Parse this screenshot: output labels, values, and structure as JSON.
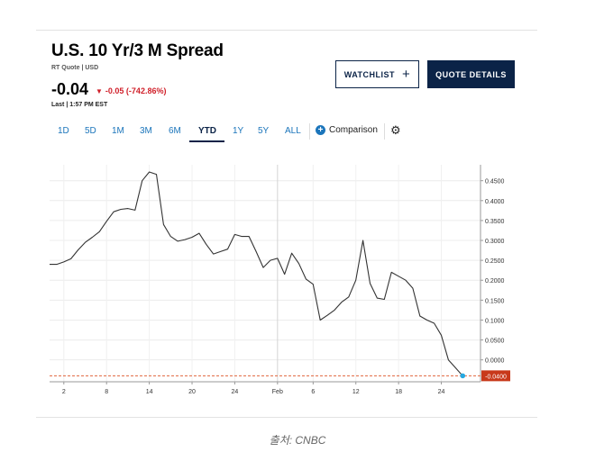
{
  "header": {
    "title": "U.S. 10 Yr/3 M Spread",
    "subtitle": "RT Quote | USD",
    "price": "-0.04",
    "change": "-0.05 (-742.86%)",
    "last": "Last | 1:57 PM EST",
    "watchlist_label": "WATCHLIST",
    "quote_details_label": "QUOTE DETAILS"
  },
  "tabs": [
    "1D",
    "5D",
    "1M",
    "3M",
    "6M",
    "YTD",
    "1Y",
    "5Y",
    "ALL"
  ],
  "active_tab": "YTD",
  "comparison_label": "Comparison",
  "caption": "출처: CNBC",
  "colors": {
    "navy": "#0b2347",
    "link": "#1b75bb",
    "negative": "#d0202a",
    "line": "#333333",
    "last_marker": "#27a9e1"
  },
  "chart_data": {
    "type": "line",
    "x_tick_labels": [
      "2",
      "8",
      "14",
      "20",
      "24",
      "Feb",
      "6",
      "12",
      "18",
      "24"
    ],
    "y_tick_labels": [
      "0.4500",
      "0.4000",
      "0.3500",
      "0.3000",
      "0.2500",
      "0.2000",
      "0.1500",
      "0.1000",
      "0.0500",
      "0.0000"
    ],
    "y_range": [
      -0.055,
      0.49
    ],
    "y_ticks": [
      0.45,
      0.4,
      0.35,
      0.3,
      0.25,
      0.2,
      0.15,
      0.1,
      0.05,
      0.0
    ],
    "x_ticks": [
      2,
      8,
      14,
      20,
      26,
      32,
      37,
      43,
      49,
      55
    ],
    "x_range": [
      0,
      60.5
    ],
    "last_value": -0.04,
    "last_value_label": "-0.0400",
    "grid": true,
    "series": [
      {
        "x": [
          0,
          1,
          2,
          3,
          4,
          5,
          6,
          7,
          8,
          9,
          10,
          11,
          12,
          13,
          14,
          15,
          16,
          17,
          18,
          19,
          20,
          21,
          22,
          23,
          24,
          25,
          26,
          27,
          28,
          29,
          30,
          31,
          32,
          33,
          34,
          35,
          36,
          37,
          38,
          39,
          40,
          41,
          42,
          43,
          44,
          45,
          46,
          47,
          48,
          49,
          50,
          51,
          52,
          53,
          54,
          55,
          56,
          57,
          58
        ],
        "y": [
          0.24,
          0.24,
          0.246,
          0.254,
          0.276,
          0.295,
          0.308,
          0.322,
          0.348,
          0.372,
          0.378,
          0.38,
          0.376,
          0.45,
          0.472,
          0.466,
          0.34,
          0.31,
          0.298,
          0.302,
          0.308,
          0.318,
          0.29,
          0.266,
          0.272,
          0.278,
          0.315,
          0.31,
          0.31,
          0.272,
          0.232,
          0.25,
          0.255,
          0.215,
          0.268,
          0.242,
          0.203,
          0.19,
          0.1,
          0.112,
          0.125,
          0.145,
          0.158,
          0.2,
          0.3,
          0.192,
          0.155,
          0.152,
          0.22,
          0.21,
          0.2,
          0.18,
          0.11,
          0.1,
          0.092,
          0.062,
          0.0,
          -0.02,
          -0.04
        ]
      }
    ]
  }
}
